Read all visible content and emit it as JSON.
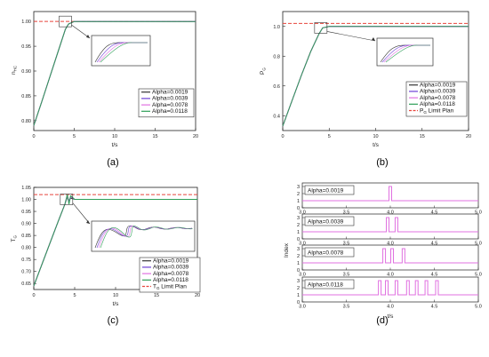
{
  "chart_data": [
    {
      "type": "line",
      "panel_label": "(a)",
      "xlabel": "t/s",
      "ylabel": "n",
      "ylabel_sub": "HC",
      "xlim": [
        0,
        20
      ],
      "ylim": [
        0.78,
        1.02
      ],
      "xticks": [
        "0",
        "5",
        "10",
        "15",
        "20"
      ],
      "yticks": [
        "0.80",
        "0.85",
        "0.90",
        "0.95",
        "1.00"
      ],
      "legend_position": "bottom-right",
      "limit_line": {
        "value": 1.0,
        "color": "#e8453c"
      },
      "series": [
        {
          "name": "Alpha=0.0019",
          "color": "#333333",
          "x": [
            0,
            1,
            2,
            3,
            3.9,
            4.3,
            5,
            20
          ],
          "y": [
            0.79,
            0.839,
            0.889,
            0.939,
            0.984,
            0.995,
            1.0,
            1.0
          ]
        },
        {
          "name": "Alpha=0.0039",
          "color": "#6c3fd6",
          "x": [
            0,
            1,
            2,
            3,
            3.9,
            4.3,
            5,
            20
          ],
          "y": [
            0.79,
            0.839,
            0.889,
            0.939,
            0.984,
            0.995,
            1.0,
            1.0
          ]
        },
        {
          "name": "Alpha=0.0078",
          "color": "#e070e0",
          "x": [
            0,
            1,
            2,
            3,
            3.9,
            4.3,
            5,
            20
          ],
          "y": [
            0.79,
            0.839,
            0.889,
            0.939,
            0.984,
            0.995,
            1.0,
            1.0
          ]
        },
        {
          "name": "Alpha=0.0118",
          "color": "#2e9e57",
          "x": [
            0,
            1,
            2,
            3,
            3.9,
            4.3,
            5,
            20
          ],
          "y": [
            0.79,
            0.839,
            0.889,
            0.939,
            0.984,
            0.995,
            1.0,
            1.0
          ]
        }
      ]
    },
    {
      "type": "line",
      "panel_label": "(b)",
      "xlabel": "t/s",
      "ylabel": "P",
      "ylabel_sub": "G",
      "xlim": [
        0,
        20
      ],
      "ylim": [
        0.3,
        1.1
      ],
      "xticks": [
        "0",
        "5",
        "10",
        "15",
        "20"
      ],
      "yticks": [
        "0.4",
        "0.6",
        "0.8",
        "1.0"
      ],
      "legend_position": "bottom-right",
      "limit_line": {
        "value": 1.02,
        "color": "#e8453c"
      },
      "series": [
        {
          "name": "Alpha=0.0019",
          "color": "#333333",
          "x": [
            0,
            1,
            2,
            3,
            3.9,
            4.3,
            5,
            20
          ],
          "y": [
            0.33,
            0.5,
            0.67,
            0.83,
            0.95,
            0.99,
            1.0,
            1.0
          ]
        },
        {
          "name": "Alpha=0.0039",
          "color": "#6c3fd6",
          "x": [
            0,
            1,
            2,
            3,
            3.9,
            4.3,
            5,
            20
          ],
          "y": [
            0.33,
            0.5,
            0.67,
            0.83,
            0.95,
            0.99,
            1.0,
            1.0
          ]
        },
        {
          "name": "Alpha=0.0078",
          "color": "#e070e0",
          "x": [
            0,
            1,
            2,
            3,
            3.9,
            4.3,
            5,
            20
          ],
          "y": [
            0.33,
            0.5,
            0.67,
            0.83,
            0.95,
            0.99,
            1.0,
            1.0
          ]
        },
        {
          "name": "Alpha=0.0118",
          "color": "#2e9e57",
          "x": [
            0,
            1,
            2,
            3,
            3.9,
            4.3,
            5,
            20
          ],
          "y": [
            0.33,
            0.5,
            0.67,
            0.83,
            0.95,
            0.99,
            1.0,
            1.0
          ]
        },
        {
          "name": "P",
          "name_sub": "G",
          "name_suffix": " Limit Plan",
          "color": "#e8453c",
          "dashed": true
        }
      ]
    },
    {
      "type": "line",
      "panel_label": "(c)",
      "xlabel": "t/s",
      "ylabel": "T",
      "ylabel_sub": "G",
      "xlim": [
        0,
        20
      ],
      "ylim": [
        0.625,
        1.05
      ],
      "xticks": [
        "0",
        "5",
        "10",
        "15",
        "20"
      ],
      "yticks": [
        "0.65",
        "0.70",
        "0.75",
        "0.80",
        "0.85",
        "0.90",
        "0.95",
        "1.00",
        "1.05"
      ],
      "legend_position": "bottom-right",
      "limit_line": {
        "value": 1.02,
        "color": "#e8453c"
      },
      "series": [
        {
          "name": "Alpha=0.0019",
          "color": "#333333",
          "x": [
            0,
            1,
            2,
            3,
            3.8,
            4.1,
            4.3,
            4.5,
            5,
            20
          ],
          "y": [
            0.64,
            0.73,
            0.82,
            0.91,
            0.98,
            1.01,
            0.995,
            1.005,
            1.0,
            1.0
          ]
        },
        {
          "name": "Alpha=0.0039",
          "color": "#6c3fd6",
          "x": [
            0,
            1,
            2,
            3,
            3.8,
            4.1,
            4.3,
            4.5,
            5,
            20
          ],
          "y": [
            0.64,
            0.73,
            0.82,
            0.91,
            0.98,
            1.015,
            0.99,
            1.01,
            1.0,
            1.0
          ]
        },
        {
          "name": "Alpha=0.0078",
          "color": "#e070e0",
          "x": [
            0,
            1,
            2,
            3,
            3.8,
            4.1,
            4.3,
            4.5,
            5,
            20
          ],
          "y": [
            0.64,
            0.73,
            0.82,
            0.91,
            0.98,
            1.018,
            0.985,
            1.012,
            1.0,
            1.0
          ]
        },
        {
          "name": "Alpha=0.0118",
          "color": "#2e9e57",
          "x": [
            0,
            1,
            2,
            3,
            3.8,
            4.1,
            4.3,
            4.5,
            5,
            20
          ],
          "y": [
            0.64,
            0.73,
            0.82,
            0.91,
            0.98,
            1.02,
            0.98,
            1.015,
            1.0,
            1.0
          ]
        },
        {
          "name": "T",
          "name_sub": "G",
          "name_suffix": " Limit Plan",
          "color": "#e8453c",
          "dashed": true
        }
      ]
    },
    {
      "type": "step",
      "panel_label": "(d)",
      "xlabel": "t/s",
      "ylabel": "Index",
      "xlim": [
        3.0,
        5.0
      ],
      "xticks": [
        "3.0",
        "3.5",
        "4.0",
        "4.5",
        "5.0"
      ],
      "ylim": [
        0,
        3
      ],
      "yticks": [
        "0",
        "1",
        "2",
        "3"
      ],
      "color": "#e070e0",
      "baseline": 1,
      "peak": 3,
      "subplots": [
        {
          "label": "Alpha=0.0019",
          "pulses": [
            4.0
          ]
        },
        {
          "label": "Alpha=0.0039",
          "pulses": [
            3.97,
            4.07
          ]
        },
        {
          "label": "Alpha=0.0078",
          "pulses": [
            3.93,
            4.02,
            4.15
          ]
        },
        {
          "label": "Alpha=0.0118",
          "pulses": [
            3.88,
            3.96,
            4.07,
            4.2,
            4.3,
            4.41,
            4.53
          ]
        }
      ]
    }
  ]
}
